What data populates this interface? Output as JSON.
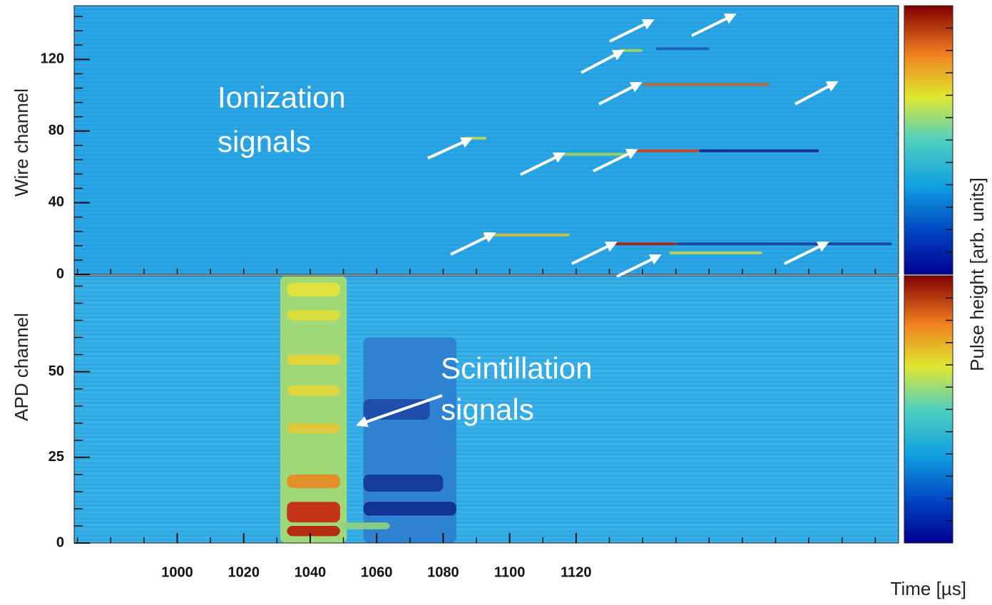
{
  "chart_data": [
    {
      "type": "heatmap",
      "y_label": "Wire channel",
      "colorbar_label": "Pulse height [arb. units]",
      "annotation_lines": [
        "Ionization",
        "signals"
      ],
      "xlim": [
        969,
        1217
      ],
      "ylim": [
        0,
        150
      ],
      "yticks": [
        0,
        40,
        80,
        120
      ],
      "background": "#2aa8e6",
      "signals": [
        {
          "channel": 22,
          "start": 1092,
          "end": 1118,
          "color": "#d7c23a"
        },
        {
          "channel": 17,
          "start": 1131,
          "end": 1150,
          "color": "#a8200f"
        },
        {
          "channel": 17,
          "start": 1150,
          "end": 1215,
          "color": "#1d3f9a"
        },
        {
          "channel": 12,
          "start": 1148,
          "end": 1176,
          "color": "#c9d04a"
        },
        {
          "channel": 69,
          "start": 1135,
          "end": 1157,
          "color": "#d4401c"
        },
        {
          "channel": 69,
          "start": 1157,
          "end": 1193,
          "color": "#10268a"
        },
        {
          "channel": 67,
          "start": 1116,
          "end": 1135,
          "color": "#9fd25a"
        },
        {
          "channel": 76,
          "start": 1086,
          "end": 1093,
          "color": "#b6d45a"
        },
        {
          "channel": 106,
          "start": 1140,
          "end": 1178,
          "color": "#c8662c"
        },
        {
          "channel": 125,
          "start": 1133,
          "end": 1140,
          "color": "#9fd25a"
        },
        {
          "channel": 126,
          "start": 1144,
          "end": 1160,
          "color": "#1f58b8"
        }
      ]
    },
    {
      "type": "heatmap",
      "y_label": "APD channel",
      "x_label": "Time [µs]",
      "annotation_lines": [
        "Scintillation",
        "signals"
      ],
      "xlim": [
        969,
        1217
      ],
      "ylim": [
        0,
        78
      ],
      "yticks": [
        0,
        25,
        50
      ],
      "xticks": [
        1000,
        1020,
        1040,
        1060,
        1080,
        1100,
        1120
      ],
      "background": "#37b2e8",
      "signals": [
        {
          "channel_range": [
            0,
            78
          ],
          "start": 1031,
          "end": 1051,
          "color": "#a8dc6e"
        },
        {
          "channel_range": [
            0,
            60
          ],
          "start": 1056,
          "end": 1084,
          "color": "#2f7fd0"
        },
        {
          "channel_range": [
            8,
            12
          ],
          "start": 1056,
          "end": 1084,
          "color": "#0f2a90"
        },
        {
          "channel_range": [
            15,
            20
          ],
          "start": 1056,
          "end": 1080,
          "color": "#14359a"
        },
        {
          "channel_range": [
            36,
            42
          ],
          "start": 1056,
          "end": 1076,
          "color": "#1d4aa8"
        },
        {
          "channel_range": [
            72,
            76
          ],
          "start": 1033,
          "end": 1049,
          "color": "#e3e23a"
        },
        {
          "channel_range": [
            65,
            68
          ],
          "start": 1033,
          "end": 1049,
          "color": "#dfe03a"
        },
        {
          "channel_range": [
            52,
            55
          ],
          "start": 1033,
          "end": 1049,
          "color": "#e6d436"
        },
        {
          "channel_range": [
            43,
            46
          ],
          "start": 1033,
          "end": 1049,
          "color": "#e4d638"
        },
        {
          "channel_range": [
            32,
            35
          ],
          "start": 1033,
          "end": 1049,
          "color": "#e2c836"
        },
        {
          "channel_range": [
            16,
            20
          ],
          "start": 1033,
          "end": 1049,
          "color": "#e88a22"
        },
        {
          "channel_range": [
            6,
            12
          ],
          "start": 1033,
          "end": 1049,
          "color": "#c8260f"
        },
        {
          "channel_range": [
            2,
            5
          ],
          "start": 1033,
          "end": 1049,
          "color": "#b61c0c"
        },
        {
          "channel_range": [
            4,
            6
          ],
          "start": 1049,
          "end": 1064,
          "color": "#8fd07a"
        }
      ]
    }
  ]
}
